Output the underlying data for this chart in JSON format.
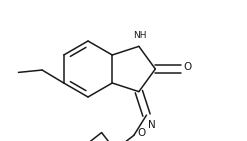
{
  "bg_color": "#ffffff",
  "line_color": "#1a1a1a",
  "lw": 1.1,
  "fs_label": 6.5,
  "figsize": [
    2.47,
    1.41
  ],
  "dpi": 100,
  "xlim": [
    0,
    247
  ],
  "ylim": [
    0,
    141
  ]
}
